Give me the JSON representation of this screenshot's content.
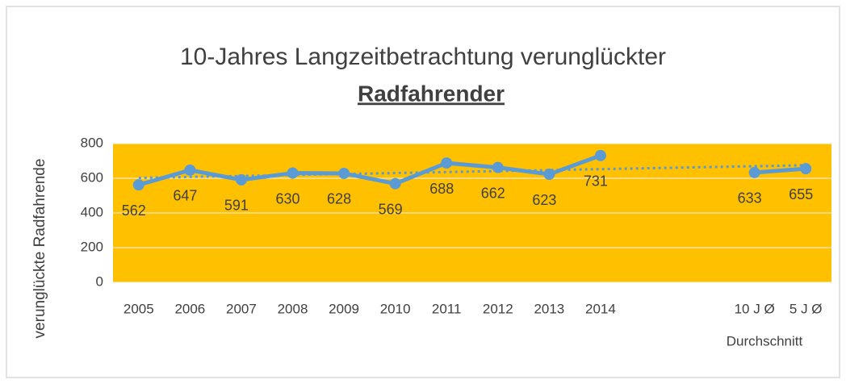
{
  "chart_data": {
    "type": "line",
    "title": "10-Jahres Langzeitbetrachtung verunglückter",
    "subtitle": "Radfahrender",
    "y_label": "verunglückte Radfahrende",
    "x_label": "Durchschnitt",
    "categories": [
      "2005",
      "2006",
      "2007",
      "2008",
      "2009",
      "2010",
      "2011",
      "2012",
      "2013",
      "2014",
      null,
      null,
      "10 J Ø",
      "5 J Ø"
    ],
    "series": [
      {
        "color": "#5b9bd5",
        "values": [
          562,
          647,
          591,
          630,
          628,
          569,
          688,
          662,
          623,
          731,
          null,
          null,
          633,
          655
        ]
      }
    ],
    "ylim": [
      0,
      800
    ],
    "yticks": [
      0,
      200,
      400,
      600,
      800
    ],
    "grid": true,
    "plot_background": "#ffc000",
    "trendline": "linear"
  }
}
